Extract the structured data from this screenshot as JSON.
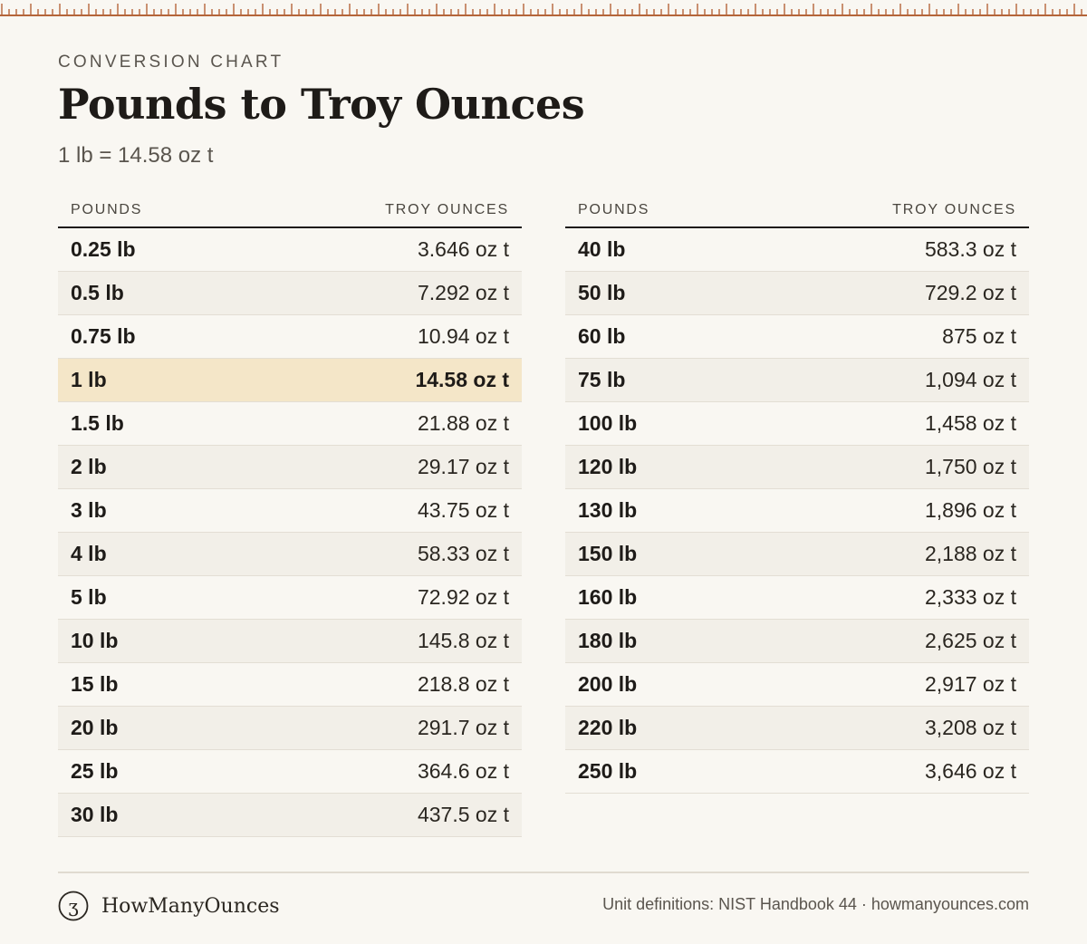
{
  "header": {
    "eyebrow": "CONVERSION CHART",
    "title": "Pounds to Troy Ounces",
    "subtitle": "1 lb = 14.58 oz t"
  },
  "columns": {
    "pounds": "POUNDS",
    "troy_ounces": "TROY OUNCES"
  },
  "left_table": [
    {
      "lb": "0.25 lb",
      "oz": "3.646 oz t"
    },
    {
      "lb": "0.5 lb",
      "oz": "7.292 oz t"
    },
    {
      "lb": "0.75 lb",
      "oz": "10.94 oz t"
    },
    {
      "lb": "1 lb",
      "oz": "14.58 oz t",
      "highlight": true
    },
    {
      "lb": "1.5 lb",
      "oz": "21.88 oz t"
    },
    {
      "lb": "2 lb",
      "oz": "29.17 oz t"
    },
    {
      "lb": "3 lb",
      "oz": "43.75 oz t"
    },
    {
      "lb": "4 lb",
      "oz": "58.33 oz t"
    },
    {
      "lb": "5 lb",
      "oz": "72.92 oz t"
    },
    {
      "lb": "10 lb",
      "oz": "145.8 oz t"
    },
    {
      "lb": "15 lb",
      "oz": "218.8 oz t"
    },
    {
      "lb": "20 lb",
      "oz": "291.7 oz t"
    },
    {
      "lb": "25 lb",
      "oz": "364.6 oz t"
    },
    {
      "lb": "30 lb",
      "oz": "437.5 oz t"
    }
  ],
  "right_table": [
    {
      "lb": "40 lb",
      "oz": "583.3 oz t"
    },
    {
      "lb": "50 lb",
      "oz": "729.2 oz t"
    },
    {
      "lb": "60 lb",
      "oz": "875 oz t"
    },
    {
      "lb": "75 lb",
      "oz": "1,094 oz t"
    },
    {
      "lb": "100 lb",
      "oz": "1,458 oz t"
    },
    {
      "lb": "120 lb",
      "oz": "1,750 oz t"
    },
    {
      "lb": "130 lb",
      "oz": "1,896 oz t"
    },
    {
      "lb": "150 lb",
      "oz": "2,188 oz t"
    },
    {
      "lb": "160 lb",
      "oz": "2,333 oz t"
    },
    {
      "lb": "180 lb",
      "oz": "2,625 oz t"
    },
    {
      "lb": "200 lb",
      "oz": "2,917 oz t"
    },
    {
      "lb": "220 lb",
      "oz": "3,208 oz t"
    },
    {
      "lb": "250 lb",
      "oz": "3,646 oz t"
    }
  ],
  "footer": {
    "logo_glyph": "ʒ",
    "logo_icon": "dram-symbol-icon",
    "brand": "HowManyOunces",
    "source": "Unit definitions: NIST Handbook 44 · howmanyounces.com"
  },
  "colors": {
    "background": "#f9f7f2",
    "ruler": "#b5653a",
    "highlight_row": "#f4e6c8",
    "stripe_row": "#f2efe8",
    "text": "#1e1b18"
  }
}
